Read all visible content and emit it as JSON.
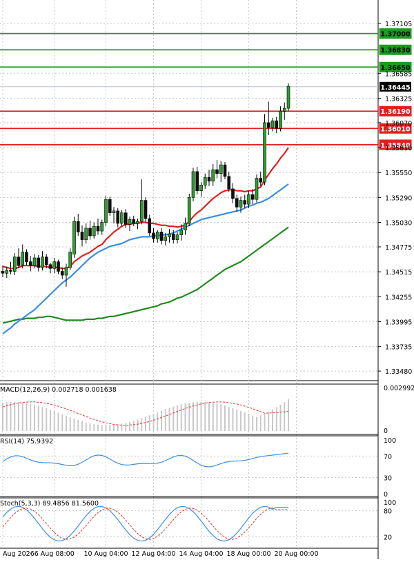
{
  "chart_data": {
    "type": "candlestick",
    "symbol_axis": {
      "price_ticks": [
        "1.37105",
        "1.36585",
        "1.36325",
        "1.36070",
        "1.35810",
        "1.35550",
        "1.35290",
        "1.35030",
        "1.34775",
        "1.34515",
        "1.34255",
        "1.33995",
        "1.33735",
        "1.33480"
      ],
      "price_ticks_value": [
        1.37105,
        1.36585,
        1.36325,
        1.3607,
        1.3581,
        1.3555,
        1.3529,
        1.3503,
        1.34775,
        1.34515,
        1.34255,
        1.33995,
        1.33735,
        1.3348
      ],
      "ylim": [
        1.3338,
        1.3722
      ]
    },
    "levels": {
      "resistance": [
        {
          "label": "1.37000",
          "value": 1.37,
          "color": "#1f9a1f"
        },
        {
          "label": "1.36830",
          "value": 1.3683,
          "color": "#1f9a1f"
        },
        {
          "label": "1.36650",
          "value": 1.3665,
          "color": "#1f9a1f"
        }
      ],
      "current": {
        "label": "1.36445",
        "value": 1.36445
      },
      "support": [
        {
          "label": "1.36190",
          "value": 1.3619,
          "color": "#e02020"
        },
        {
          "label": "1.36010",
          "value": 1.3601,
          "color": "#e02020"
        },
        {
          "label": "1.35840",
          "value": 1.3584,
          "color": "#e02020"
        }
      ]
    },
    "x_labels": [
      "Aug 2026",
      "6 Aug 08:00",
      "10 Aug 04:00",
      "12 Aug 04:00",
      "14 Aug 04:00",
      "18 Aug 00:00",
      "20 Aug 00:00"
    ],
    "x_label_index": [
      0,
      13,
      26,
      38,
      50,
      62,
      74
    ],
    "candles": [
      [
        1.3452,
        1.3458,
        1.3446,
        1.345
      ],
      [
        1.345,
        1.3457,
        1.3445,
        1.3453
      ],
      [
        1.3453,
        1.3462,
        1.3449,
        1.3452
      ],
      [
        1.3452,
        1.3471,
        1.3448,
        1.3467
      ],
      [
        1.3467,
        1.3476,
        1.3455,
        1.3458
      ],
      [
        1.3458,
        1.348,
        1.3455,
        1.3472
      ],
      [
        1.3472,
        1.3475,
        1.3458,
        1.3462
      ],
      [
        1.3462,
        1.3468,
        1.3452,
        1.3458
      ],
      [
        1.3458,
        1.347,
        1.3455,
        1.3466
      ],
      [
        1.3466,
        1.3469,
        1.3452,
        1.3456
      ],
      [
        1.3456,
        1.3473,
        1.3453,
        1.3467
      ],
      [
        1.3467,
        1.347,
        1.3455,
        1.3459
      ],
      [
        1.3459,
        1.3461,
        1.345,
        1.3455
      ],
      [
        1.3455,
        1.3466,
        1.345,
        1.3462
      ],
      [
        1.3462,
        1.3464,
        1.3449,
        1.3452
      ],
      [
        1.3452,
        1.3456,
        1.3444,
        1.3448
      ],
      [
        1.3448,
        1.346,
        1.3436,
        1.3456
      ],
      [
        1.3456,
        1.3476,
        1.3453,
        1.3472
      ],
      [
        1.347,
        1.3509,
        1.3466,
        1.3504
      ],
      [
        1.3504,
        1.3512,
        1.3489,
        1.3493
      ],
      [
        1.3493,
        1.35,
        1.3478,
        1.3485
      ],
      [
        1.3485,
        1.3502,
        1.3481,
        1.3497
      ],
      [
        1.3497,
        1.3505,
        1.3485,
        1.3489
      ],
      [
        1.3489,
        1.3503,
        1.3486,
        1.3499
      ],
      [
        1.3499,
        1.3507,
        1.349,
        1.3494
      ],
      [
        1.3494,
        1.3506,
        1.349,
        1.3503
      ],
      [
        1.3503,
        1.3531,
        1.3499,
        1.3527
      ],
      [
        1.3527,
        1.353,
        1.351,
        1.3513
      ],
      [
        1.3513,
        1.3519,
        1.3502,
        1.3515
      ],
      [
        1.3515,
        1.3518,
        1.3498,
        1.3502
      ],
      [
        1.3502,
        1.3516,
        1.3499,
        1.3513
      ],
      [
        1.3513,
        1.3517,
        1.3497,
        1.3501
      ],
      [
        1.3501,
        1.3509,
        1.3494,
        1.3506
      ],
      [
        1.3506,
        1.351,
        1.3499,
        1.3502
      ],
      [
        1.3502,
        1.3507,
        1.3496,
        1.3504
      ],
      [
        1.3504,
        1.3548,
        1.3501,
        1.3526
      ],
      [
        1.3526,
        1.3529,
        1.3503,
        1.3507
      ],
      [
        1.3507,
        1.3511,
        1.3489,
        1.3492
      ],
      [
        1.3492,
        1.3497,
        1.3482,
        1.3486
      ],
      [
        1.3486,
        1.3495,
        1.3482,
        1.3493
      ],
      [
        1.3493,
        1.3497,
        1.348,
        1.3484
      ],
      [
        1.3484,
        1.3492,
        1.3479,
        1.3488
      ],
      [
        1.3488,
        1.3496,
        1.3482,
        1.3491
      ],
      [
        1.3491,
        1.3495,
        1.3481,
        1.3485
      ],
      [
        1.3485,
        1.3493,
        1.3481,
        1.349
      ],
      [
        1.349,
        1.3501,
        1.3484,
        1.3495
      ],
      [
        1.3495,
        1.3508,
        1.349,
        1.3502
      ],
      [
        1.3502,
        1.3533,
        1.3499,
        1.3529
      ],
      [
        1.3529,
        1.356,
        1.3525,
        1.3556
      ],
      [
        1.3556,
        1.3561,
        1.3532,
        1.3536
      ],
      [
        1.3536,
        1.3545,
        1.353,
        1.3542
      ],
      [
        1.3542,
        1.3554,
        1.3538,
        1.355
      ],
      [
        1.355,
        1.3558,
        1.3541,
        1.3546
      ],
      [
        1.3546,
        1.3564,
        1.3541,
        1.3558
      ],
      [
        1.3558,
        1.3568,
        1.3549,
        1.3554
      ],
      [
        1.3554,
        1.3567,
        1.3545,
        1.3563
      ],
      [
        1.3563,
        1.3566,
        1.3548,
        1.3551
      ],
      [
        1.3551,
        1.3556,
        1.3535,
        1.3538
      ],
      [
        1.3538,
        1.3544,
        1.3523,
        1.3528
      ],
      [
        1.3528,
        1.3532,
        1.3514,
        1.3519
      ],
      [
        1.3519,
        1.353,
        1.3513,
        1.3526
      ],
      [
        1.3526,
        1.3532,
        1.3518,
        1.3522
      ],
      [
        1.3522,
        1.3536,
        1.3518,
        1.3532
      ],
      [
        1.3532,
        1.3538,
        1.3522,
        1.3527
      ],
      [
        1.3527,
        1.3553,
        1.3524,
        1.3549
      ],
      [
        1.3549,
        1.3556,
        1.3541,
        1.3545
      ],
      [
        1.3545,
        1.3616,
        1.3542,
        1.3607
      ],
      [
        1.3607,
        1.3629,
        1.3594,
        1.3602
      ],
      [
        1.3602,
        1.3612,
        1.3598,
        1.3609
      ],
      [
        1.3609,
        1.3613,
        1.3596,
        1.3601
      ],
      [
        1.3601,
        1.3624,
        1.3598,
        1.3619
      ],
      [
        1.3619,
        1.3628,
        1.361,
        1.3622
      ],
      [
        1.3622,
        1.3648,
        1.3619,
        1.3645
      ]
    ],
    "ma_fast": [
      1.3457,
      1.3456,
      1.3455,
      1.3455,
      1.3456,
      1.3458,
      1.3458,
      1.3458,
      1.3458,
      1.3457,
      1.3457,
      1.3457,
      1.3456,
      1.3456,
      1.3456,
      1.3455,
      1.3455,
      1.3457,
      1.3462,
      1.3465,
      1.3468,
      1.347,
      1.3472,
      1.3475,
      1.3478,
      1.348,
      1.3485,
      1.3489,
      1.3493,
      1.3496,
      1.3499,
      1.3501,
      1.3501,
      1.3502,
      1.3502,
      1.3503,
      1.3503,
      1.3502,
      1.3502,
      1.3501,
      1.35,
      1.35,
      1.3499,
      1.3499,
      1.3498,
      1.3499,
      1.35,
      1.3504,
      1.3509,
      1.3513,
      1.3516,
      1.352,
      1.3524,
      1.3528,
      1.3531,
      1.3534,
      1.3536,
      1.3537,
      1.3537,
      1.3536,
      1.3536,
      1.3535,
      1.3536,
      1.3536,
      1.3538,
      1.354,
      1.3547,
      1.3553,
      1.3559,
      1.3564,
      1.357,
      1.3575,
      1.3581
    ],
    "ma_mid": [
      1.3387,
      1.339,
      1.3393,
      1.3397,
      1.34,
      1.3403,
      1.3406,
      1.3409,
      1.3412,
      1.3416,
      1.342,
      1.3424,
      1.3428,
      1.3432,
      1.3436,
      1.344,
      1.3443,
      1.3446,
      1.345,
      1.3454,
      1.3458,
      1.3462,
      1.3466,
      1.3469,
      1.3472,
      1.3474,
      1.3476,
      1.3478,
      1.3479,
      1.348,
      1.3481,
      1.3483,
      1.3485,
      1.3486,
      1.3487,
      1.3488,
      1.3488,
      1.3488,
      1.3489,
      1.3489,
      1.349,
      1.349,
      1.3491,
      1.3492,
      1.3494,
      1.3496,
      1.3498,
      1.35,
      1.3502,
      1.3504,
      1.3506,
      1.3507,
      1.3508,
      1.3509,
      1.351,
      1.3511,
      1.3512,
      1.3513,
      1.3514,
      1.3515,
      1.3516,
      1.3518,
      1.352,
      1.3521,
      1.3523,
      1.3524,
      1.3526,
      1.3528,
      1.3531,
      1.3534,
      1.3537,
      1.354,
      1.3543
    ],
    "ma_slow": [
      1.3398,
      1.3399,
      1.34,
      1.3401,
      1.3402,
      1.3402,
      1.3403,
      1.3403,
      1.3403,
      1.3404,
      1.3404,
      1.3405,
      1.3405,
      1.3404,
      1.3403,
      1.3402,
      1.3401,
      1.3401,
      1.3401,
      1.3401,
      1.3401,
      1.3402,
      1.3402,
      1.3402,
      1.3403,
      1.3403,
      1.3404,
      1.3405,
      1.3405,
      1.3406,
      1.3407,
      1.3408,
      1.3409,
      1.341,
      1.3411,
      1.3412,
      1.3413,
      1.3414,
      1.3415,
      1.3416,
      1.3418,
      1.3419,
      1.342,
      1.3422,
      1.3424,
      1.3425,
      1.3427,
      1.3429,
      1.3431,
      1.3433,
      1.3436,
      1.3439,
      1.3442,
      1.3445,
      1.3448,
      1.3451,
      1.3454,
      1.3456,
      1.3458,
      1.346,
      1.3462,
      1.3465,
      1.3468,
      1.3471,
      1.3474,
      1.3477,
      1.348,
      1.3483,
      1.3486,
      1.3489,
      1.3492,
      1.3495,
      1.3498
    ],
    "macd": {
      "label": "MACD(12,26,9) 0.002718 0.001638",
      "axis_top": "0.002992",
      "axis_zero": "0",
      "max": 0.00299
    },
    "rsi": {
      "label": "RSI(14) 75.9392",
      "levels": [
        "100",
        "70",
        "30",
        "0"
      ]
    },
    "stoch": {
      "label": "Stoch(5,3,3) 89.4856 81.5600",
      "levels": [
        "100",
        "80",
        "20"
      ]
    }
  }
}
